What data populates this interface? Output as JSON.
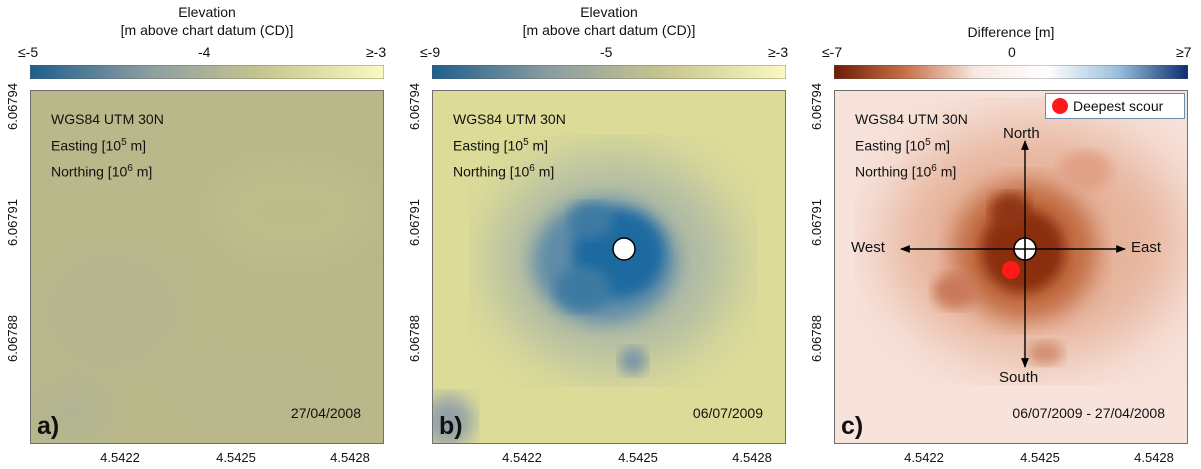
{
  "chart_data": [
    {
      "type": "heatmap",
      "panel_label": "a)",
      "colorbar": {
        "title": [
          "Elevation",
          "[m above chart datum (CD)]"
        ],
        "ticks": [
          "≤-5",
          "-4",
          "≥-3"
        ],
        "range": [
          -5,
          -3
        ],
        "colors": [
          "#1e5f8d",
          "#8c9da0",
          "#c9c78f",
          "#fbf8c2"
        ]
      },
      "crs_text": [
        "WGS84 UTM 30N",
        "Easting [10",
        "5",
        " m]",
        "Northing [10",
        "6",
        " m]"
      ],
      "x_ticks": [
        "4.5422",
        "4.5425",
        "4.5428"
      ],
      "y_ticks": [
        "6.06794",
        "6.06791",
        "6.06788"
      ],
      "date": "27/04/2008",
      "background_color": "#b9b88a"
    },
    {
      "type": "heatmap",
      "panel_label": "b)",
      "colorbar": {
        "title": [
          "Elevation",
          "[m above chart datum (CD)]"
        ],
        "ticks": [
          "≤-9",
          "-5",
          "≥-3"
        ],
        "range": [
          -9,
          -3
        ],
        "colors": [
          "#1e5f8d",
          "#8c9da0",
          "#c9c78f",
          "#fbf8c2"
        ]
      },
      "crs_text": [
        "WGS84 UTM 30N",
        "Easting [10",
        "5",
        " m]",
        "Northing [10",
        "6",
        " m]"
      ],
      "x_ticks": [
        "4.5422",
        "4.5425",
        "4.5428"
      ],
      "y_ticks": [
        "6.06794",
        "6.06791",
        "6.06788"
      ],
      "date": "06/07/2009",
      "background_color": "#dcdb98",
      "scour_color": "#1f6aa0",
      "monopile_color": "#ffffff"
    },
    {
      "type": "heatmap",
      "panel_label": "c)",
      "colorbar": {
        "title": [
          "Difference [m]"
        ],
        "ticks": [
          "≤-7",
          "0",
          "≥7"
        ],
        "range": [
          -7,
          7
        ],
        "colors": [
          "#6e1d05",
          "#c76f47",
          "#f8e8e2",
          "#ffffff",
          "#9cc1dd",
          "#0d2d6e"
        ]
      },
      "crs_text": [
        "WGS84 UTM 30N",
        "Easting [10",
        "5",
        " m]",
        "Northing [10",
        "6",
        " m]"
      ],
      "x_ticks": [
        "4.5422",
        "4.5425",
        "4.5428"
      ],
      "y_ticks": [
        "6.06794",
        "6.06791",
        "6.06788"
      ],
      "date": "06/07/2009 - 27/04/2008",
      "background_color": "#f7e3dc",
      "legend": {
        "label": "Deepest scour",
        "marker_color": "#ff1a1a"
      },
      "directions": [
        "North",
        "South",
        "East",
        "West"
      ]
    }
  ]
}
